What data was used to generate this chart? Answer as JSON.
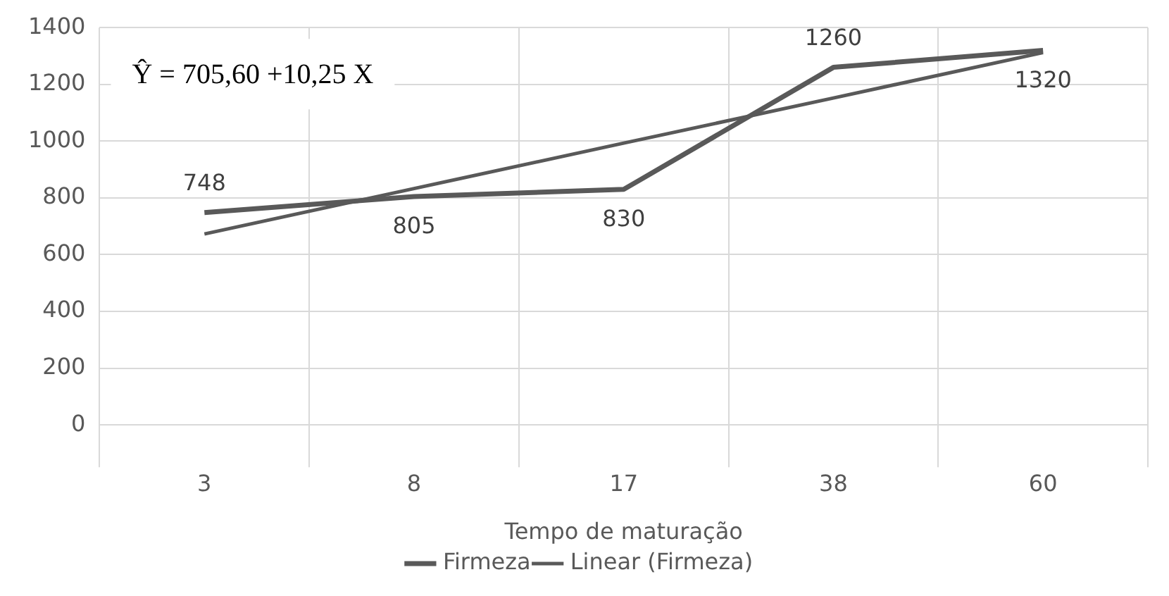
{
  "chart_data": {
    "type": "line",
    "xlabel": "Tempo de maturação",
    "categories": [
      "3",
      "8",
      "17",
      "38",
      "60"
    ],
    "series": [
      {
        "name": "Firmeza",
        "color": "#595959",
        "values": [
          748,
          805,
          830,
          1260,
          1320
        ],
        "value_labels": [
          "748",
          "805",
          "830",
          "1260",
          "1320"
        ]
      },
      {
        "name": "Linear (Firmeza)",
        "type": "line",
        "color": "#595959",
        "values": [
          673,
          833,
          993,
          1152,
          1312
        ]
      }
    ],
    "ylim": [
      0,
      1400
    ],
    "yticks": [
      0,
      200,
      400,
      600,
      800,
      1000,
      1200,
      1400
    ],
    "grid": true,
    "legend": "bottom",
    "marker": "none",
    "line_style": "solid",
    "annotations": [
      "Ŷ = 705,60 +10,25 X"
    ]
  }
}
